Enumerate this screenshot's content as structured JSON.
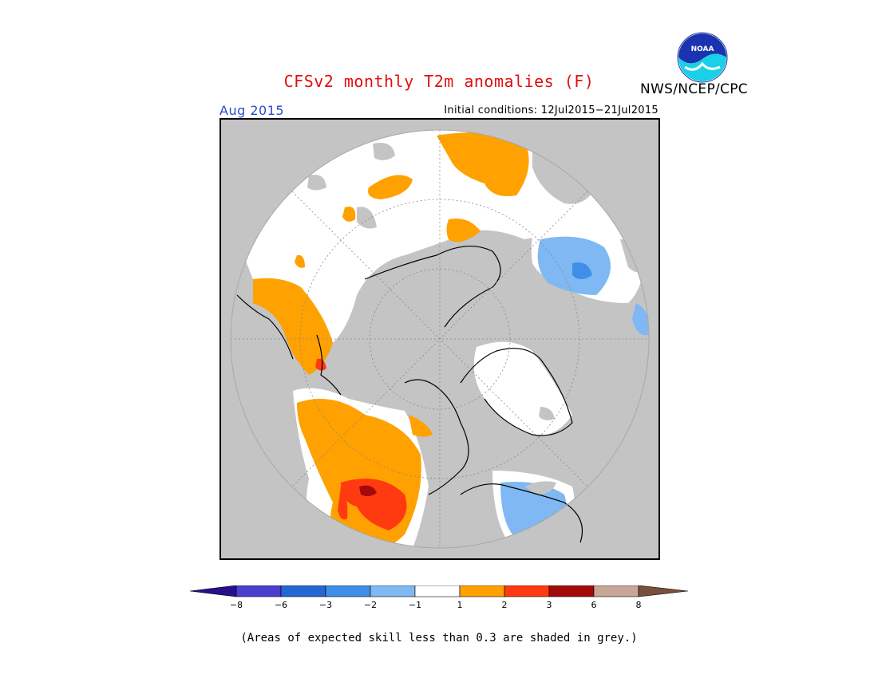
{
  "header": {
    "title": "CFSv2 monthly T2m anomalies (F)",
    "agency": "NWS/NCEP/CPC",
    "logo_text": "NOAA",
    "period": "Aug 2015",
    "initial_conditions": "Initial conditions: 12Jul2015−21Jul2015"
  },
  "legend": {
    "colors": [
      "#2a0f8c",
      "#4a3fcf",
      "#2466d4",
      "#3f8fe9",
      "#7fb8f2",
      "#ffffff",
      "#ffa100",
      "#ff3a10",
      "#a30a0a",
      "#c8a698",
      "#7a4f3c"
    ],
    "tick_labels": [
      "−8",
      "−6",
      "−3",
      "−2",
      "−1",
      "1",
      "2",
      "3",
      "6",
      "8"
    ]
  },
  "footnote": "(Areas of expected skill less than 0.3 are shaded in grey.)"
}
